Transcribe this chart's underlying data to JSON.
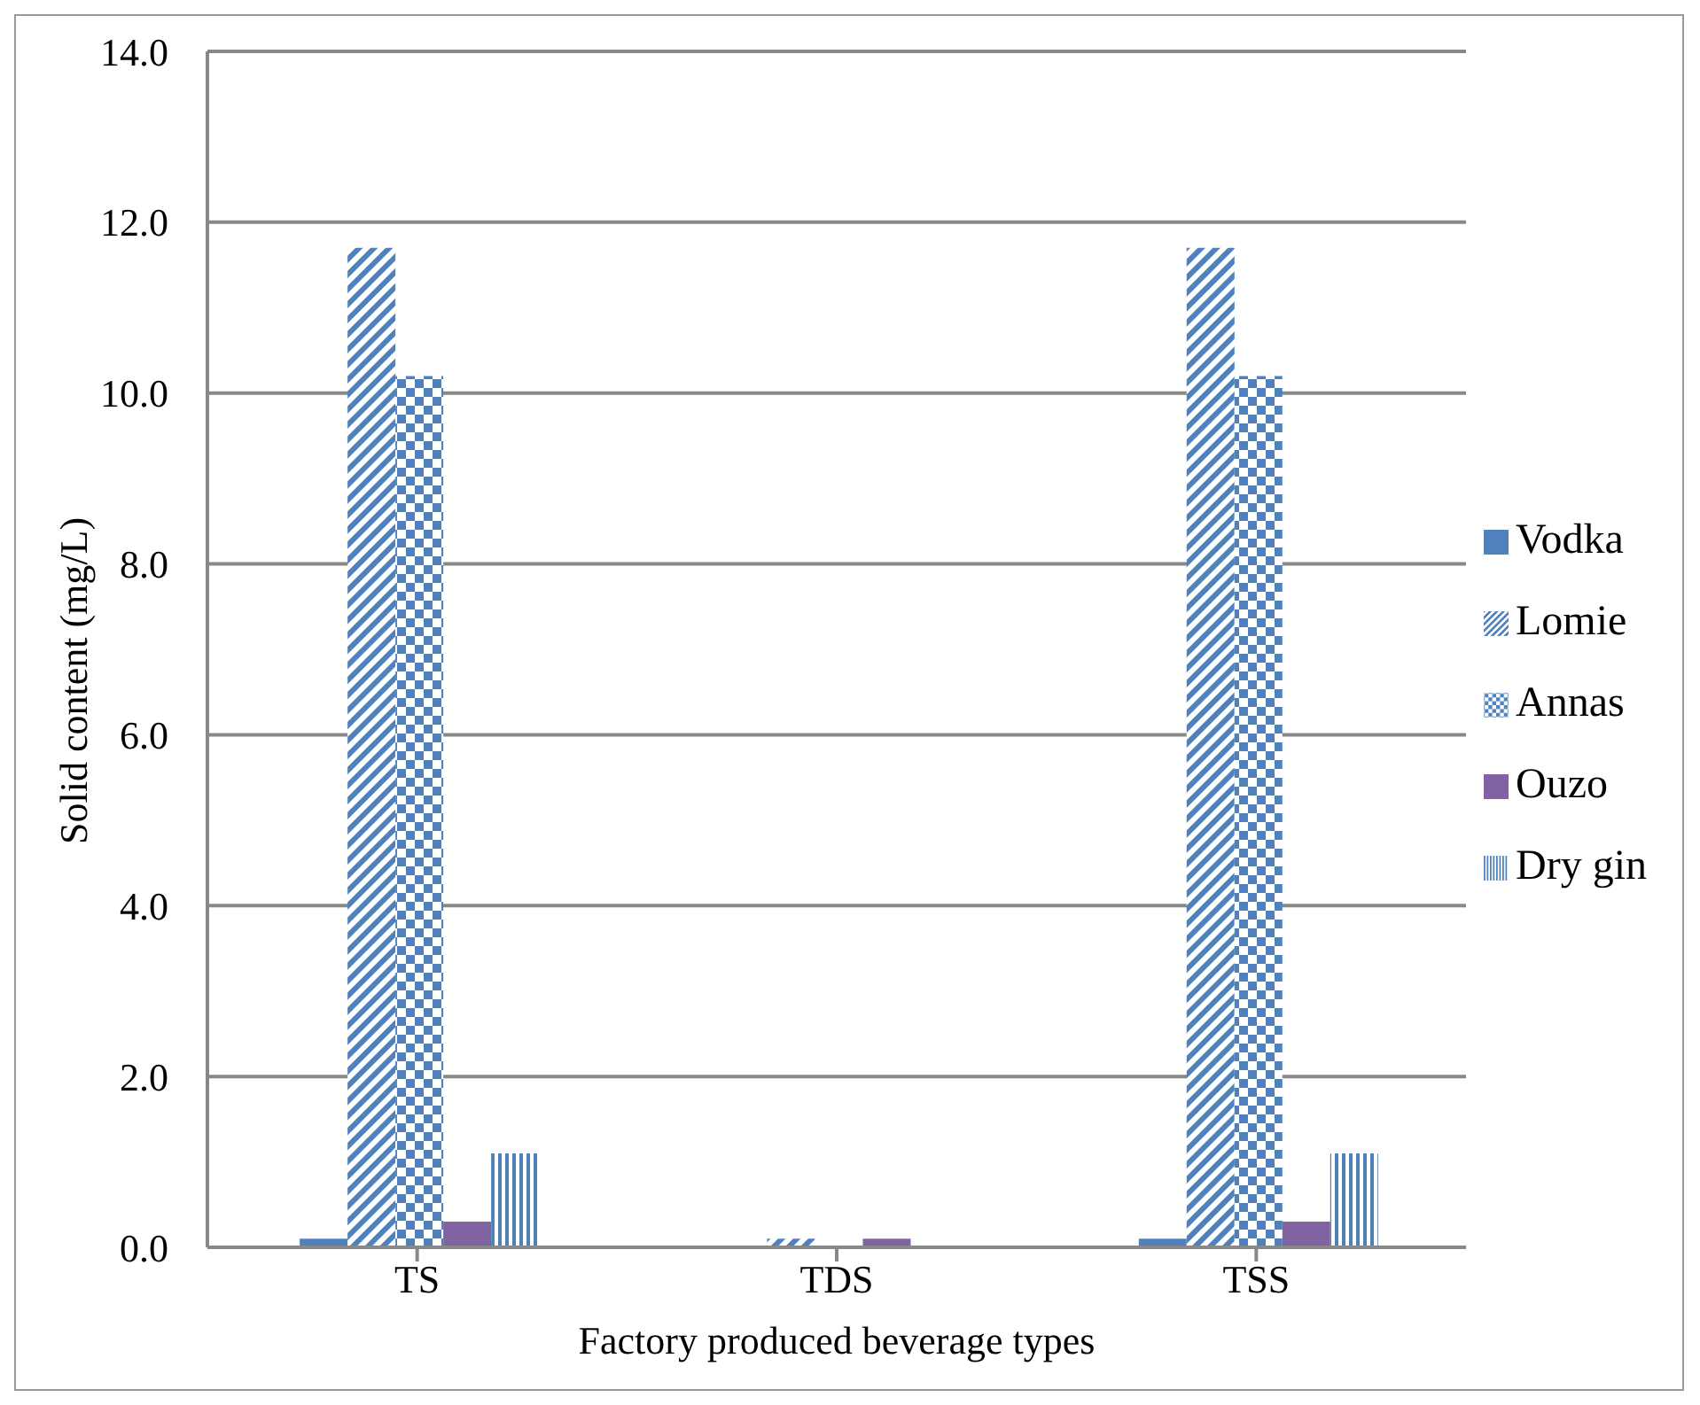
{
  "chart_data": {
    "type": "bar",
    "xlabel": "Factory produced beverage types",
    "ylabel": "Solid content (mg/L)",
    "categories": [
      "TS",
      "TDS",
      "TSS"
    ],
    "series": [
      {
        "name": "Vodka",
        "color": "#4f81bd",
        "values": [
          0.1,
          0,
          0.1
        ]
      },
      {
        "name": "Lomie",
        "color": "#4f81bd",
        "values": [
          11.7,
          0.1,
          11.7
        ]
      },
      {
        "name": "Annas",
        "color": "#4f81bd",
        "values": [
          10.2,
          0,
          10.2
        ]
      },
      {
        "name": "Ouzo",
        "color": "#8064a2",
        "values": [
          0.3,
          0.1,
          0.3
        ]
      },
      {
        "name": "Dry gin",
        "color": "#4f81bd",
        "values": [
          1.1,
          0,
          1.1
        ]
      }
    ],
    "ylim": [
      0,
      14
    ],
    "yticks": [
      {
        "value": 0,
        "label": "0.0"
      },
      {
        "value": 2,
        "label": "2.0"
      },
      {
        "value": 4,
        "label": "4.0"
      },
      {
        "value": 6,
        "label": "6.0"
      },
      {
        "value": 8,
        "label": "8.0"
      },
      {
        "value": 10,
        "label": "10.0"
      },
      {
        "value": 12,
        "label": "12.0"
      },
      {
        "value": 14,
        "label": "14.0"
      }
    ],
    "grid": "y",
    "legend": "right"
  }
}
